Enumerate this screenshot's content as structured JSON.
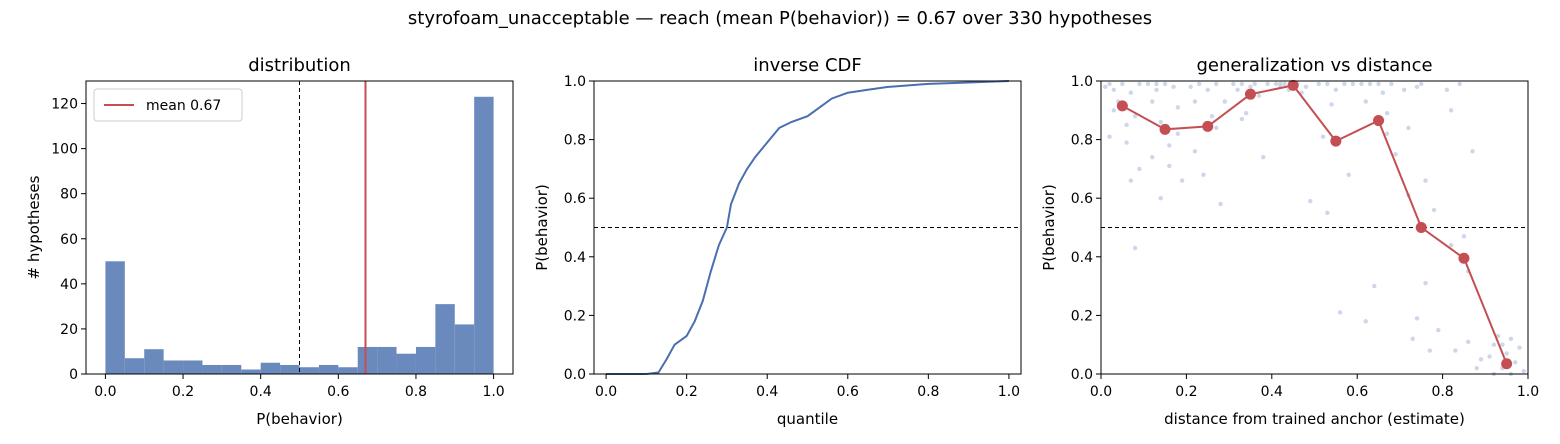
{
  "figure": {
    "suptitle": "styrofoam_unacceptable  —  reach (mean P(behavior)) = 0.67  over 330 hypotheses"
  },
  "colors": {
    "bar": "#6a89bd",
    "cdf_line": "#4a6fb0",
    "mean_line": "#c44e52",
    "scatter": "#b8c6e0",
    "threshold": "#000000"
  },
  "chart_data": [
    {
      "type": "bar",
      "title": "distribution",
      "xlabel": "P(behavior)",
      "ylabel": "# hypotheses",
      "xlim": [
        -0.05,
        1.05
      ],
      "ylim": [
        0,
        130
      ],
      "xticks": [
        "0.0",
        "0.2",
        "0.4",
        "0.6",
        "0.8",
        "1.0"
      ],
      "yticks": [
        "0",
        "20",
        "40",
        "60",
        "80",
        "100",
        "120"
      ],
      "bin_edges": [
        0.0,
        0.05,
        0.1,
        0.15,
        0.2,
        0.25,
        0.3,
        0.35,
        0.4,
        0.45,
        0.5,
        0.55,
        0.6,
        0.65,
        0.7,
        0.75,
        0.8,
        0.85,
        0.9,
        0.95,
        1.0
      ],
      "values": [
        50,
        7,
        11,
        6,
        6,
        4,
        4,
        2,
        5,
        4,
        3,
        4,
        3,
        12,
        12,
        9,
        12,
        31,
        22,
        123
      ],
      "threshold": 0.5,
      "mean": 0.67,
      "legend": [
        "mean 0.67"
      ],
      "legend_position": "upper-left"
    },
    {
      "type": "line",
      "title": "inverse CDF",
      "xlabel": "quantile",
      "ylabel": "P(behavior)",
      "xlim": [
        -0.03,
        1.03
      ],
      "ylim": [
        0,
        1.0
      ],
      "xticks": [
        "0.0",
        "0.2",
        "0.4",
        "0.6",
        "0.8",
        "1.0"
      ],
      "yticks": [
        "0.0",
        "0.2",
        "0.4",
        "0.6",
        "0.8",
        "1.0"
      ],
      "threshold": 0.5,
      "x": [
        0.0,
        0.1,
        0.13,
        0.15,
        0.17,
        0.2,
        0.22,
        0.24,
        0.26,
        0.28,
        0.3,
        0.31,
        0.33,
        0.35,
        0.37,
        0.4,
        0.43,
        0.46,
        0.5,
        0.53,
        0.56,
        0.6,
        0.65,
        0.7,
        0.8,
        0.9,
        1.0
      ],
      "y": [
        0.0,
        0.0,
        0.005,
        0.05,
        0.1,
        0.13,
        0.18,
        0.25,
        0.35,
        0.44,
        0.5,
        0.58,
        0.65,
        0.7,
        0.74,
        0.79,
        0.84,
        0.86,
        0.88,
        0.91,
        0.94,
        0.96,
        0.97,
        0.98,
        0.99,
        0.995,
        1.0
      ]
    },
    {
      "type": "scatter",
      "title": "generalization vs distance",
      "xlabel": "distance from trained anchor (estimate)",
      "ylabel": "P(behavior)",
      "xlim": [
        0.0,
        1.0
      ],
      "ylim": [
        0.0,
        1.0
      ],
      "xticks": [
        "0.0",
        "0.2",
        "0.4",
        "0.6",
        "0.8",
        "1.0"
      ],
      "yticks": [
        "0.0",
        "0.2",
        "0.4",
        "0.6",
        "0.8",
        "1.0"
      ],
      "threshold": 0.5,
      "series": [
        {
          "x": [
            0.05,
            0.15,
            0.25,
            0.35,
            0.45,
            0.55,
            0.65,
            0.75,
            0.85,
            0.95
          ],
          "y": [
            0.915,
            0.835,
            0.845,
            0.955,
            0.985,
            0.795,
            0.865,
            0.5,
            0.395,
            0.035
          ]
        }
      ],
      "points": [
        [
          0.01,
          0.98
        ],
        [
          0.02,
          0.99
        ],
        [
          0.03,
          0.97
        ],
        [
          0.04,
          0.93
        ],
        [
          0.05,
          0.99
        ],
        [
          0.06,
          0.85
        ],
        [
          0.07,
          0.96
        ],
        [
          0.08,
          0.88
        ],
        [
          0.09,
          0.99
        ],
        [
          0.02,
          0.81
        ],
        [
          0.07,
          0.66
        ],
        [
          0.08,
          0.43
        ],
        [
          0.03,
          0.9
        ],
        [
          0.06,
          0.79
        ],
        [
          0.09,
          0.7
        ],
        [
          0.11,
          0.99
        ],
        [
          0.12,
          0.93
        ],
        [
          0.13,
          0.97
        ],
        [
          0.14,
          0.86
        ],
        [
          0.15,
          0.99
        ],
        [
          0.16,
          0.78
        ],
        [
          0.17,
          0.98
        ],
        [
          0.18,
          0.91
        ],
        [
          0.19,
          0.66
        ],
        [
          0.12,
          0.74
        ],
        [
          0.14,
          0.6
        ],
        [
          0.16,
          0.71
        ],
        [
          0.18,
          0.82
        ],
        [
          0.13,
          0.99
        ],
        [
          0.21,
          0.98
        ],
        [
          0.22,
          0.93
        ],
        [
          0.23,
          0.99
        ],
        [
          0.24,
          0.68
        ],
        [
          0.25,
          0.97
        ],
        [
          0.26,
          0.88
        ],
        [
          0.27,
          0.99
        ],
        [
          0.28,
          0.58
        ],
        [
          0.29,
          0.93
        ],
        [
          0.22,
          0.76
        ],
        [
          0.27,
          0.84
        ],
        [
          0.31,
          0.99
        ],
        [
          0.32,
          0.97
        ],
        [
          0.33,
          0.99
        ],
        [
          0.34,
          0.89
        ],
        [
          0.35,
          0.98
        ],
        [
          0.36,
          0.99
        ],
        [
          0.37,
          0.95
        ],
        [
          0.38,
          0.74
        ],
        [
          0.39,
          0.99
        ],
        [
          0.33,
          0.87
        ],
        [
          0.41,
          0.99
        ],
        [
          0.42,
          0.98
        ],
        [
          0.43,
          0.99
        ],
        [
          0.44,
          0.97
        ],
        [
          0.45,
          0.99
        ],
        [
          0.46,
          0.99
        ],
        [
          0.47,
          0.96
        ],
        [
          0.48,
          0.98
        ],
        [
          0.49,
          0.59
        ],
        [
          0.42,
          0.99
        ],
        [
          0.51,
          0.99
        ],
        [
          0.52,
          0.81
        ],
        [
          0.53,
          0.99
        ],
        [
          0.54,
          0.92
        ],
        [
          0.55,
          0.97
        ],
        [
          0.56,
          0.21
        ],
        [
          0.57,
          0.99
        ],
        [
          0.58,
          0.68
        ],
        [
          0.59,
          0.99
        ],
        [
          0.53,
          0.55
        ],
        [
          0.61,
          0.99
        ],
        [
          0.62,
          0.93
        ],
        [
          0.63,
          0.99
        ],
        [
          0.64,
          0.3
        ],
        [
          0.65,
          0.99
        ],
        [
          0.66,
          0.96
        ],
        [
          0.67,
          0.89
        ],
        [
          0.68,
          0.99
        ],
        [
          0.69,
          0.75
        ],
        [
          0.62,
          0.18
        ],
        [
          0.67,
          0.82
        ],
        [
          0.71,
          0.97
        ],
        [
          0.72,
          0.61
        ],
        [
          0.73,
          0.12
        ],
        [
          0.74,
          0.19
        ],
        [
          0.75,
          0.99
        ],
        [
          0.76,
          0.31
        ],
        [
          0.77,
          0.08
        ],
        [
          0.78,
          0.56
        ],
        [
          0.79,
          0.15
        ],
        [
          0.72,
          0.84
        ],
        [
          0.76,
          0.66
        ],
        [
          0.74,
          0.98
        ],
        [
          0.81,
          0.97
        ],
        [
          0.82,
          0.44
        ],
        [
          0.83,
          0.08
        ],
        [
          0.84,
          0.99
        ],
        [
          0.85,
          0.47
        ],
        [
          0.86,
          0.11
        ],
        [
          0.87,
          0.76
        ],
        [
          0.88,
          0.02
        ],
        [
          0.89,
          0.05
        ],
        [
          0.82,
          0.9
        ],
        [
          0.86,
          0.35
        ],
        [
          0.91,
          0.06
        ],
        [
          0.92,
          0.1
        ],
        [
          0.93,
          0.13
        ],
        [
          0.94,
          0.02
        ],
        [
          0.95,
          0.07
        ],
        [
          0.96,
          0.12
        ],
        [
          0.97,
          0.04
        ],
        [
          0.98,
          0.09
        ],
        [
          0.99,
          0.01
        ],
        [
          0.92,
          0.0
        ],
        [
          0.96,
          0.0
        ],
        [
          0.94,
          0.1
        ]
      ]
    }
  ]
}
